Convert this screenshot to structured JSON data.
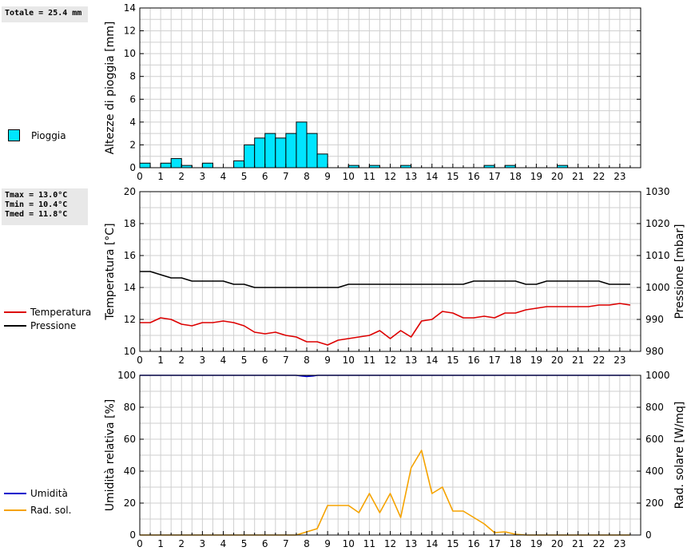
{
  "stats": {
    "rain_total": "Totale = 25.4 mm",
    "tmax": "Tmax = 13.0°C",
    "tmin": "Tmin = 10.4°C",
    "tmed": "Tmed = 11.8°C"
  },
  "colors": {
    "rain": "#00e5ff",
    "temperature": "#dd0000",
    "pressure": "#000000",
    "humidity": "#0000cc",
    "solar": "#f5a300",
    "grid": "#cfcfcf"
  },
  "chart_data": [
    {
      "type": "bar",
      "ylabel": "Altezze di pioggia [mm]",
      "ylim": [
        0,
        14
      ],
      "yticks": [
        0,
        2,
        4,
        6,
        8,
        10,
        12,
        14
      ],
      "xlim": [
        0,
        24
      ],
      "xticks": [
        0,
        1,
        2,
        3,
        4,
        5,
        6,
        7,
        8,
        9,
        10,
        11,
        12,
        13,
        14,
        15,
        16,
        17,
        18,
        19,
        20,
        21,
        22,
        23
      ],
      "grid": true,
      "legend": [
        "Pioggia"
      ],
      "series": [
        {
          "name": "Pioggia",
          "bar_width_hours": 0.5,
          "bars": [
            {
              "x": 0.0,
              "value": 0.4
            },
            {
              "x": 1.0,
              "value": 0.4
            },
            {
              "x": 1.5,
              "value": 0.8
            },
            {
              "x": 2.0,
              "value": 0.2
            },
            {
              "x": 3.0,
              "value": 0.4
            },
            {
              "x": 4.5,
              "value": 0.6
            },
            {
              "x": 5.0,
              "value": 2.0
            },
            {
              "x": 5.5,
              "value": 2.6
            },
            {
              "x": 6.0,
              "value": 3.0
            },
            {
              "x": 6.5,
              "value": 2.6
            },
            {
              "x": 7.0,
              "value": 3.0
            },
            {
              "x": 7.5,
              "value": 4.0
            },
            {
              "x": 8.0,
              "value": 3.0
            },
            {
              "x": 8.5,
              "value": 1.2
            },
            {
              "x": 10.0,
              "value": 0.2
            },
            {
              "x": 11.0,
              "value": 0.2
            },
            {
              "x": 12.5,
              "value": 0.2
            },
            {
              "x": 16.5,
              "value": 0.2
            },
            {
              "x": 17.5,
              "value": 0.2
            },
            {
              "x": 20.0,
              "value": 0.2
            }
          ]
        }
      ]
    },
    {
      "type": "line",
      "ylabel": "Temperatura [°C]",
      "ylim": [
        10,
        20
      ],
      "yticks": [
        10,
        12,
        14,
        16,
        18,
        20
      ],
      "y2label": "Pressione [mbar]",
      "y2lim": [
        980,
        1030
      ],
      "y2ticks": [
        980,
        990,
        1000,
        1010,
        1020,
        1030
      ],
      "xlim": [
        0,
        24
      ],
      "xticks": [
        0,
        1,
        2,
        3,
        4,
        5,
        6,
        7,
        8,
        9,
        10,
        11,
        12,
        13,
        14,
        15,
        16,
        17,
        18,
        19,
        20,
        21,
        22,
        23
      ],
      "grid": true,
      "legend": [
        "Temperatura",
        "Pressione"
      ],
      "series": [
        {
          "name": "Temperatura",
          "axis": "left",
          "x": [
            0,
            0.5,
            1,
            1.5,
            2,
            2.5,
            3,
            3.5,
            4,
            4.5,
            5,
            5.5,
            6,
            6.5,
            7,
            7.5,
            8,
            8.5,
            9,
            9.5,
            10,
            10.5,
            11,
            11.5,
            12,
            12.5,
            13,
            13.5,
            14,
            14.5,
            15,
            15.5,
            16,
            16.5,
            17,
            17.5,
            18,
            18.5,
            19,
            19.5,
            20,
            20.5,
            21,
            21.5,
            22,
            22.5,
            23,
            23.5
          ],
          "values": [
            11.8,
            11.8,
            12.1,
            12.0,
            11.7,
            11.6,
            11.8,
            11.8,
            11.9,
            11.8,
            11.6,
            11.2,
            11.1,
            11.2,
            11.0,
            10.9,
            10.6,
            10.6,
            10.4,
            10.7,
            10.8,
            10.9,
            11.0,
            11.3,
            10.8,
            11.3,
            10.9,
            11.9,
            12.0,
            12.5,
            12.4,
            12.1,
            12.1,
            12.2,
            12.1,
            12.4,
            12.4,
            12.6,
            12.7,
            12.8,
            12.8,
            12.8,
            12.8,
            12.8,
            12.9,
            12.9,
            13.0,
            12.9
          ]
        },
        {
          "name": "Pressione",
          "axis": "right",
          "x": [
            0,
            0.5,
            1,
            1.5,
            2,
            2.5,
            3,
            3.5,
            4,
            4.5,
            5,
            5.5,
            6,
            6.5,
            7,
            7.5,
            8,
            8.5,
            9,
            9.5,
            10,
            10.5,
            11,
            11.5,
            12,
            12.5,
            13,
            13.5,
            14,
            14.5,
            15,
            15.5,
            16,
            16.5,
            17,
            17.5,
            18,
            18.5,
            19,
            19.5,
            20,
            20.5,
            21,
            21.5,
            22,
            22.5,
            23,
            23.5
          ],
          "values": [
            1005,
            1005,
            1004,
            1003,
            1003,
            1002,
            1002,
            1002,
            1002,
            1001,
            1001,
            1000,
            1000,
            1000,
            1000,
            1000,
            1000,
            1000,
            1000,
            1000,
            1001,
            1001,
            1001,
            1001,
            1001,
            1001,
            1001,
            1001,
            1001,
            1001,
            1001,
            1001,
            1002,
            1002,
            1002,
            1002,
            1002,
            1001,
            1001,
            1002,
            1002,
            1002,
            1002,
            1002,
            1002,
            1001,
            1001,
            1001
          ]
        }
      ]
    },
    {
      "type": "line",
      "ylabel": "Umidità relativa [%]",
      "ylim": [
        0,
        100
      ],
      "yticks": [
        0,
        20,
        40,
        60,
        80,
        100
      ],
      "y2label": "Rad. solare [W/mq]",
      "y2lim": [
        0,
        1000
      ],
      "y2ticks": [
        0,
        200,
        400,
        600,
        800,
        1000
      ],
      "xlim": [
        0,
        24
      ],
      "xticks": [
        0,
        1,
        2,
        3,
        4,
        5,
        6,
        7,
        8,
        9,
        10,
        11,
        12,
        13,
        14,
        15,
        16,
        17,
        18,
        19,
        20,
        21,
        22,
        23
      ],
      "grid": true,
      "legend": [
        "Umidità",
        "Rad. sol."
      ],
      "series": [
        {
          "name": "Umidità",
          "axis": "left",
          "x": [
            0,
            1,
            2,
            3,
            4,
            5,
            6,
            7,
            7.5,
            7.8,
            8,
            8.3,
            8.5,
            9,
            10,
            11,
            12,
            13,
            14,
            15,
            16,
            17,
            18,
            19,
            20,
            21,
            22,
            23,
            23.5
          ],
          "values": [
            100,
            100,
            100,
            100,
            100,
            100,
            100,
            100,
            100,
            99.5,
            99.3,
            99.6,
            100,
            100,
            100,
            100,
            100,
            100,
            100,
            100,
            100,
            100,
            100,
            100,
            100,
            100,
            100,
            100,
            100
          ]
        },
        {
          "name": "Rad. sol.",
          "axis": "right",
          "x": [
            0,
            0.5,
            1,
            1.5,
            2,
            2.5,
            3,
            3.5,
            4,
            4.5,
            5,
            5.5,
            6,
            6.5,
            7,
            7.5,
            8,
            8.5,
            9,
            9.5,
            10,
            10.5,
            11,
            11.5,
            12,
            12.5,
            13,
            13.5,
            14,
            14.5,
            15,
            15.5,
            16,
            16.5,
            17,
            17.5,
            18,
            18.5,
            19,
            19.5,
            20,
            20.5,
            21,
            21.5,
            22,
            22.5,
            23,
            23.5
          ],
          "values": [
            0,
            0,
            0,
            0,
            0,
            0,
            0,
            0,
            0,
            0,
            0,
            0,
            0,
            0,
            0,
            0,
            20,
            40,
            185,
            185,
            185,
            140,
            260,
            140,
            260,
            110,
            420,
            530,
            260,
            300,
            150,
            150,
            110,
            70,
            15,
            20,
            5,
            0,
            0,
            0,
            0,
            0,
            0,
            0,
            0,
            0,
            0,
            0
          ]
        }
      ]
    }
  ]
}
